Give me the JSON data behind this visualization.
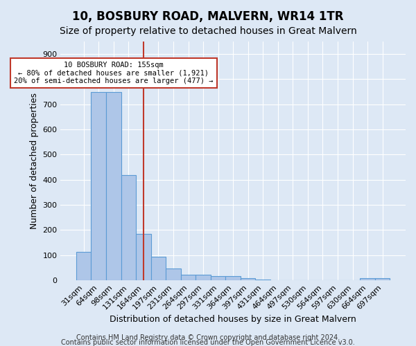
{
  "title": "10, BOSBURY ROAD, MALVERN, WR14 1TR",
  "subtitle": "Size of property relative to detached houses in Great Malvern",
  "xlabel": "Distribution of detached houses by size in Great Malvern",
  "ylabel": "Number of detached properties",
  "categories": [
    "31sqm",
    "64sqm",
    "98sqm",
    "131sqm",
    "164sqm",
    "197sqm",
    "231sqm",
    "264sqm",
    "297sqm",
    "331sqm",
    "364sqm",
    "397sqm",
    "431sqm",
    "464sqm",
    "497sqm",
    "530sqm",
    "564sqm",
    "597sqm",
    "630sqm",
    "664sqm",
    "697sqm"
  ],
  "values": [
    112,
    748,
    750,
    420,
    185,
    95,
    46,
    22,
    22,
    18,
    16,
    8,
    2,
    1,
    1,
    0,
    0,
    0,
    0,
    8,
    9
  ],
  "bar_color": "#aec6e8",
  "bar_edge_color": "#5b9bd5",
  "vline_x": 4.0,
  "vline_color": "#c0392b",
  "annotation_text": "10 BOSBURY ROAD: 155sqm\n← 80% of detached houses are smaller (1,921)\n20% of semi-detached houses are larger (477) →",
  "annotation_box_color": "white",
  "annotation_box_edge_color": "#c0392b",
  "ylim": [
    0,
    950
  ],
  "yticks": [
    0,
    100,
    200,
    300,
    400,
    500,
    600,
    700,
    800,
    900
  ],
  "footer_line1": "Contains HM Land Registry data © Crown copyright and database right 2024.",
  "footer_line2": "Contains public sector information licensed under the Open Government Licence v3.0.",
  "bg_color": "#dde8f5",
  "title_fontsize": 12,
  "subtitle_fontsize": 10,
  "axis_label_fontsize": 9,
  "tick_fontsize": 8,
  "footer_fontsize": 7
}
